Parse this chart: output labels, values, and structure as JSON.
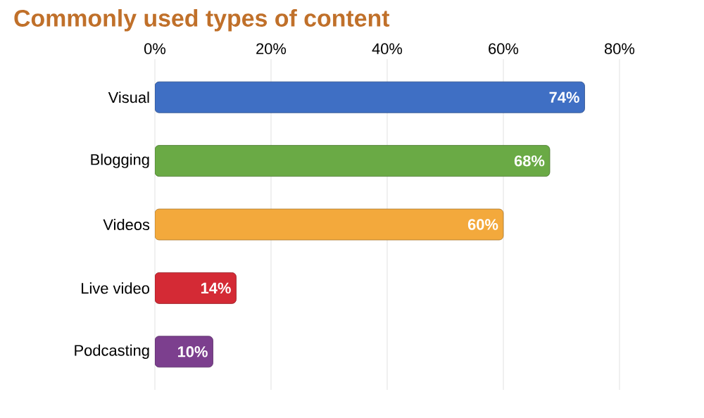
{
  "chart_data": {
    "type": "bar",
    "orientation": "horizontal",
    "title": "Commonly used types of content",
    "categories": [
      "Visual",
      "Blogging",
      "Videos",
      "Live video",
      "Podcasting"
    ],
    "values": [
      74,
      68,
      60,
      14,
      10
    ],
    "colors": [
      "#3f6fc4",
      "#6aaa45",
      "#f3a93c",
      "#d42a35",
      "#7c3f8e"
    ],
    "value_labels": [
      "74%",
      "68%",
      "60%",
      "14%",
      "10%"
    ],
    "xlim": [
      0,
      80
    ],
    "xticks": [
      {
        "value": 0,
        "label": "0%"
      },
      {
        "value": 20,
        "label": "20%"
      },
      {
        "value": 40,
        "label": "40%"
      },
      {
        "value": 60,
        "label": "60%"
      },
      {
        "value": 80,
        "label": "80%"
      }
    ],
    "grid": "x"
  }
}
